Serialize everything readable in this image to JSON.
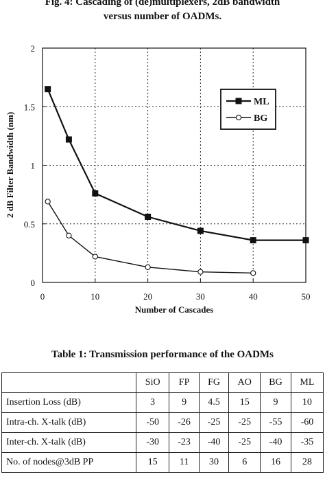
{
  "figure": {
    "caption_line1": "Fig. 4: Cascading of (de)multiplexers, 2dB bandwidth",
    "caption_line2": "versus number of OADMs."
  },
  "chart_data": {
    "type": "line",
    "xlabel": "Number of Cascades",
    "ylabel": "2 dB Filter Bandwidth (nm)",
    "xlim": [
      0,
      50
    ],
    "ylim": [
      0,
      2
    ],
    "xticks": [
      0,
      10,
      20,
      30,
      40,
      50
    ],
    "yticks": [
      0,
      0.5,
      1,
      1.5,
      2
    ],
    "ytick_labels": [
      "0",
      "0.5",
      "1",
      "1.5",
      "2"
    ],
    "grid": true,
    "legend_position": "upper-right",
    "series": [
      {
        "name": "ML",
        "marker": "filled-square",
        "x": [
          1,
          5,
          10,
          20,
          30,
          40,
          50
        ],
        "y": [
          1.65,
          1.22,
          0.76,
          0.56,
          0.44,
          0.36,
          0.36
        ]
      },
      {
        "name": "BG",
        "marker": "open-circle",
        "x": [
          1,
          5,
          10,
          20,
          30,
          40
        ],
        "y": [
          0.69,
          0.4,
          0.22,
          0.13,
          0.09,
          0.08
        ]
      }
    ]
  },
  "table": {
    "caption": "Table 1: Transmission performance of the OADMs",
    "columns": [
      "",
      "SiO",
      "FP",
      "FG",
      "AO",
      "BG",
      "ML"
    ],
    "rows": [
      {
        "label": "Insertion Loss (dB)",
        "values": [
          "3",
          "9",
          "4.5",
          "15",
          "9",
          "10"
        ]
      },
      {
        "label": "Intra-ch. X-talk (dB)",
        "values": [
          "-50",
          "-26",
          "-25",
          "-25",
          "-55",
          "-60"
        ]
      },
      {
        "label": "Inter-ch. X-talk (dB)",
        "values": [
          "-30",
          "-23",
          "-40",
          "-25",
          "-40",
          "-35"
        ]
      },
      {
        "label": "No. of nodes@3dB PP",
        "values": [
          "15",
          "11",
          "30",
          "6",
          "16",
          "28"
        ]
      }
    ]
  }
}
